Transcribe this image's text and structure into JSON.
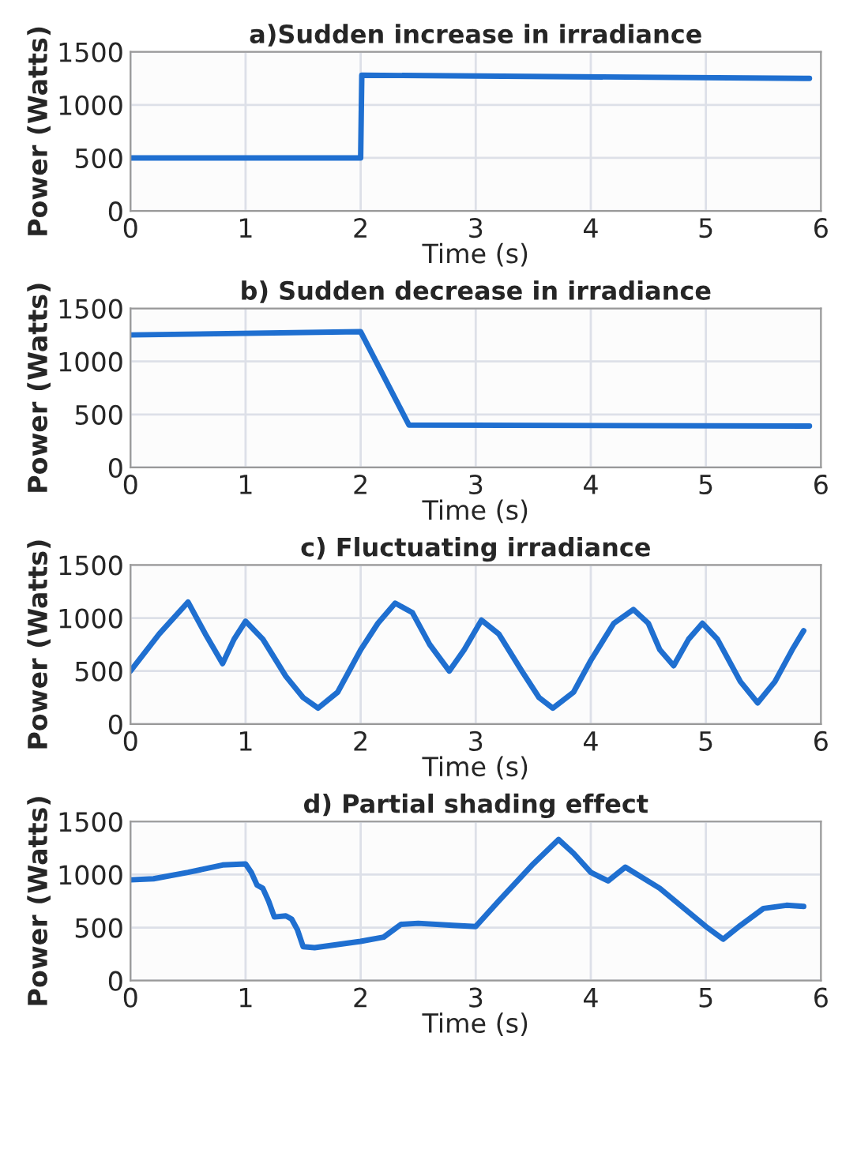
{
  "chart_data": [
    {
      "type": "line",
      "title": "a)Sudden increase in irradiance",
      "xlabel": "Time (s)",
      "ylabel": "Power (Watts)",
      "xlim": [
        0,
        6
      ],
      "ylim": [
        0,
        1500
      ],
      "xticks": [
        0,
        1,
        2,
        3,
        4,
        5,
        6
      ],
      "yticks": [
        0,
        500,
        1000,
        1500
      ],
      "grid": true,
      "series": [
        {
          "color": "#1f6fd0",
          "x": [
            0,
            2,
            2.01,
            5.9
          ],
          "values": [
            500,
            500,
            1280,
            1250
          ]
        }
      ]
    },
    {
      "type": "line",
      "title": "b) Sudden decrease in irradiance",
      "xlabel": "Time (s)",
      "ylabel": "Power (Watts)",
      "xlim": [
        0,
        6
      ],
      "ylim": [
        0,
        1500
      ],
      "xticks": [
        0,
        1,
        2,
        3,
        4,
        5,
        6
      ],
      "yticks": [
        0,
        500,
        1000,
        1500
      ],
      "grid": true,
      "series": [
        {
          "color": "#1f6fd0",
          "x": [
            0,
            2,
            2.42,
            5.9
          ],
          "values": [
            1250,
            1280,
            400,
            390
          ]
        }
      ]
    },
    {
      "type": "line",
      "title": "c) Fluctuating irradiance",
      "xlabel": "Time (s)",
      "ylabel": "Power (Watts)",
      "xlim": [
        0,
        6
      ],
      "ylim": [
        0,
        1500
      ],
      "xticks": [
        0,
        1,
        2,
        3,
        4,
        5,
        6
      ],
      "yticks": [
        0,
        500,
        1000,
        1500
      ],
      "grid": true,
      "series": [
        {
          "color": "#1f6fd0",
          "x": [
            0,
            0.25,
            0.5,
            0.65,
            0.8,
            0.9,
            1.0,
            1.15,
            1.35,
            1.5,
            1.63,
            1.8,
            2.0,
            2.15,
            2.3,
            2.45,
            2.6,
            2.77,
            2.9,
            3.05,
            3.2,
            3.4,
            3.55,
            3.67,
            3.85,
            4.0,
            4.2,
            4.37,
            4.5,
            4.6,
            4.72,
            4.85,
            4.97,
            5.1,
            5.3,
            5.45,
            5.6,
            5.75,
            5.85
          ],
          "values": [
            500,
            850,
            1150,
            850,
            570,
            800,
            970,
            800,
            450,
            250,
            150,
            300,
            700,
            950,
            1140,
            1050,
            750,
            500,
            700,
            980,
            850,
            500,
            250,
            150,
            300,
            600,
            950,
            1080,
            950,
            700,
            550,
            800,
            950,
            800,
            400,
            200,
            400,
            700,
            880
          ]
        }
      ]
    },
    {
      "type": "line",
      "title": "d) Partial shading effect",
      "xlabel": "Time (s)",
      "ylabel": "Power (Watts)",
      "xlim": [
        0,
        6
      ],
      "ylim": [
        0,
        1500
      ],
      "xticks": [
        0,
        1,
        2,
        3,
        4,
        5,
        6
      ],
      "yticks": [
        0,
        500,
        1000,
        1500
      ],
      "grid": true,
      "series": [
        {
          "color": "#1f6fd0",
          "x": [
            0,
            0.2,
            0.5,
            0.8,
            1.0,
            1.05,
            1.1,
            1.15,
            1.2,
            1.25,
            1.35,
            1.4,
            1.45,
            1.5,
            1.6,
            2.0,
            2.2,
            2.3,
            2.35,
            2.5,
            2.8,
            3.0,
            3.2,
            3.5,
            3.72,
            3.85,
            4.0,
            4.15,
            4.3,
            4.6,
            5.0,
            5.15,
            5.3,
            5.5,
            5.7,
            5.85
          ],
          "values": [
            950,
            960,
            1020,
            1090,
            1100,
            1020,
            900,
            870,
            750,
            600,
            610,
            580,
            480,
            320,
            310,
            370,
            410,
            490,
            530,
            540,
            520,
            510,
            750,
            1100,
            1330,
            1200,
            1020,
            940,
            1070,
            870,
            510,
            390,
            520,
            680,
            710,
            700
          ]
        }
      ]
    }
  ]
}
